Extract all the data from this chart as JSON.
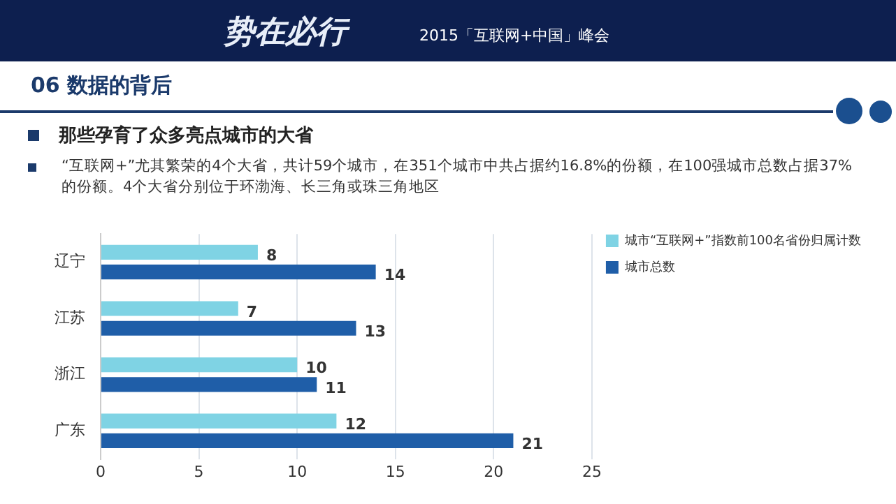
{
  "chart_data": {
    "type": "bar",
    "orientation": "horizontal",
    "title": "06 数据的背后",
    "subtitle": "那些孕育了众多亮点城市的大省",
    "annotations": [
      "势在必行",
      "2015「互联网+中国」峰会",
      "“互联网+”尤其繁荣的4个大省，共计59个城市，在351个城市中共占据约16.8%的份额，在100强城市总数占据37%的份额。4个大省分别位于环渤海、长三角或珠三角地区"
    ],
    "categories": [
      "辽宁",
      "江苏",
      "浙江",
      "广东"
    ],
    "series": [
      {
        "name": "城市“互联网+”指数前100名省份归属计数",
        "color": "#7fd3e4",
        "values": [
          8,
          7,
          10,
          12
        ]
      },
      {
        "name": "城市总数",
        "color": "#1f5ea8",
        "values": [
          14,
          13,
          11,
          21
        ]
      }
    ],
    "xlim": [
      0,
      25
    ],
    "xticks": [
      0,
      5,
      10,
      15,
      20,
      25
    ],
    "grid": "x",
    "legend": "right",
    "data_labels": true
  }
}
